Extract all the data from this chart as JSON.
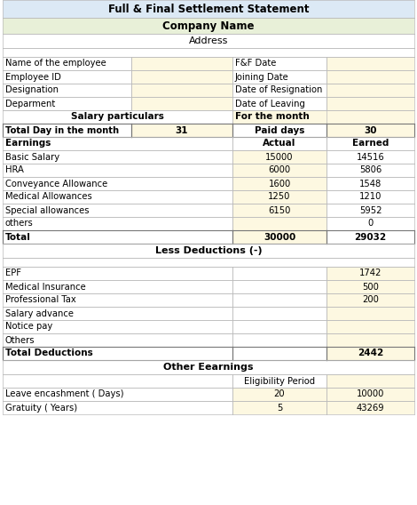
{
  "title": "Full & Final Settlement Statement",
  "company": "Company Name",
  "address": "Address",
  "title_bg": "#dce9f5",
  "company_bg": "#e8f0d8",
  "yellow_bg": "#fdf8e1",
  "white_bg": "#ffffff",
  "bc": "#bbbbbb",
  "dbc": "#777777",
  "c0": 3,
  "c1": 148,
  "c2": 262,
  "c3": 368,
  "c4": 467,
  "info_rows": [
    [
      "Name of the employee",
      "F&F Date"
    ],
    [
      "Employee ID",
      "Joining Date"
    ],
    [
      "Designation",
      "Date of Resignation"
    ],
    [
      "Deparment",
      "Date of Leaving"
    ]
  ],
  "earning_rows": [
    [
      "Basic Salary",
      "15000",
      "14516"
    ],
    [
      "HRA",
      "6000",
      "5806"
    ],
    [
      "Conveyance Allowance",
      "1600",
      "1548"
    ],
    [
      "Medical Allowances",
      "1250",
      "1210"
    ],
    [
      "Special allowances",
      "6150",
      "5952"
    ],
    [
      "others",
      "",
      "0"
    ]
  ],
  "deduction_rows": [
    [
      "EPF",
      "1742"
    ],
    [
      "Medical Insurance",
      "500"
    ],
    [
      "Professional Tax",
      "200"
    ],
    [
      "Salary advance",
      ""
    ],
    [
      "Notice pay",
      ""
    ],
    [
      "Others",
      ""
    ]
  ],
  "other_rows": [
    [
      "Leave encashment ( Days)",
      "20",
      "10000"
    ],
    [
      "Gratuity ( Years)",
      "5",
      "43269"
    ]
  ]
}
